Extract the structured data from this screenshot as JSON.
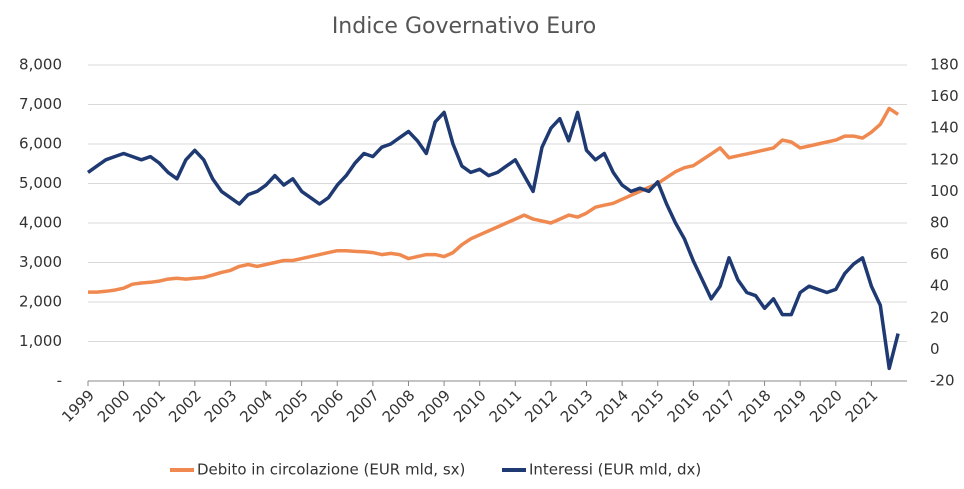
{
  "chart_data": {
    "type": "line",
    "title": "Indice Governativo Euro",
    "x": [
      1999,
      1999.25,
      1999.5,
      1999.75,
      2000,
      2000.25,
      2000.5,
      2000.75,
      2001,
      2001.25,
      2001.5,
      2001.75,
      2002,
      2002.25,
      2002.5,
      2002.75,
      2003,
      2003.25,
      2003.5,
      2003.75,
      2004,
      2004.25,
      2004.5,
      2004.75,
      2005,
      2005.25,
      2005.5,
      2005.75,
      2006,
      2006.25,
      2006.5,
      2006.75,
      2007,
      2007.25,
      2007.5,
      2007.75,
      2008,
      2008.25,
      2008.5,
      2008.75,
      2009,
      2009.25,
      2009.5,
      2009.75,
      2010,
      2010.25,
      2010.5,
      2010.75,
      2011,
      2011.25,
      2011.5,
      2011.75,
      2012,
      2012.25,
      2012.5,
      2012.75,
      2013,
      2013.25,
      2013.5,
      2013.75,
      2014,
      2014.25,
      2014.5,
      2014.75,
      2015,
      2015.25,
      2015.5,
      2015.75,
      2016,
      2016.25,
      2016.5,
      2016.75,
      2017,
      2017.25,
      2017.5,
      2017.75,
      2018,
      2018.25,
      2018.5,
      2018.75,
      2019,
      2019.25,
      2019.5,
      2019.75,
      2020,
      2020.25,
      2020.5,
      2020.75,
      2021,
      2021.25,
      2021.5,
      2021.75
    ],
    "series": [
      {
        "name": "Debito in circolazione (EUR mld, sx)",
        "color": "#f0894f",
        "axis": "y",
        "values": [
          2250,
          2250,
          2270,
          2300,
          2350,
          2450,
          2480,
          2500,
          2530,
          2580,
          2600,
          2580,
          2600,
          2620,
          2680,
          2750,
          2800,
          2900,
          2950,
          2900,
          2950,
          3000,
          3050,
          3050,
          3100,
          3150,
          3200,
          3250,
          3300,
          3300,
          3280,
          3270,
          3250,
          3200,
          3230,
          3200,
          3100,
          3150,
          3200,
          3200,
          3150,
          3250,
          3450,
          3600,
          3700,
          3800,
          3900,
          4000,
          4100,
          4200,
          4100,
          4050,
          4000,
          4100,
          4200,
          4150,
          4250,
          4400,
          4450,
          4500,
          4600,
          4700,
          4800,
          4900,
          5000,
          5150,
          5300,
          5400,
          5450,
          5600,
          5750,
          5900,
          5650,
          5700,
          5750,
          5800,
          5850,
          5900,
          6100,
          6050,
          5900,
          5950,
          6000,
          6050,
          6100,
          6200,
          6200,
          6150,
          6300,
          6500,
          6900,
          6750
        ]
      },
      {
        "name": "Interessi  (EUR mld, dx)",
        "color": "#1f3a73",
        "axis": "y2",
        "values": [
          112,
          116,
          120,
          122,
          124,
          122,
          120,
          122,
          118,
          112,
          108,
          120,
          126,
          120,
          108,
          100,
          96,
          92,
          98,
          100,
          104,
          110,
          104,
          108,
          100,
          96,
          92,
          96,
          104,
          110,
          118,
          124,
          122,
          128,
          130,
          134,
          138,
          132,
          124,
          144,
          150,
          130,
          116,
          112,
          114,
          110,
          112,
          116,
          120,
          110,
          100,
          128,
          140,
          146,
          132,
          150,
          126,
          120,
          124,
          112,
          104,
          100,
          102,
          100,
          106,
          92,
          80,
          70,
          56,
          44,
          32,
          40,
          58,
          44,
          36,
          34,
          26,
          32,
          22,
          22,
          36,
          40,
          38,
          36,
          38,
          48,
          54,
          58,
          40,
          28,
          -12,
          10
        ]
      }
    ],
    "xlim": [
      1999,
      2022
    ],
    "xticks": [
      1999,
      2000,
      2001,
      2002,
      2003,
      2004,
      2005,
      2006,
      2007,
      2008,
      2009,
      2010,
      2011,
      2012,
      2013,
      2014,
      2015,
      2016,
      2017,
      2018,
      2019,
      2020,
      2021
    ],
    "ylim": [
      0,
      8000
    ],
    "yticks": [
      {
        "value": 0,
        "label": "-"
      },
      {
        "value": 1000,
        "label": "1,000"
      },
      {
        "value": 2000,
        "label": "2,000"
      },
      {
        "value": 3000,
        "label": "3,000"
      },
      {
        "value": 4000,
        "label": "4,000"
      },
      {
        "value": 5000,
        "label": "5,000"
      },
      {
        "value": 6000,
        "label": "6,000"
      },
      {
        "value": 7000,
        "label": "7,000"
      },
      {
        "value": 8000,
        "label": "8,000"
      }
    ],
    "y2lim": [
      -20,
      180
    ],
    "y2ticks": [
      -20,
      0,
      20,
      40,
      60,
      80,
      100,
      120,
      140,
      160,
      180
    ],
    "grid": true,
    "legend": "bottom"
  }
}
